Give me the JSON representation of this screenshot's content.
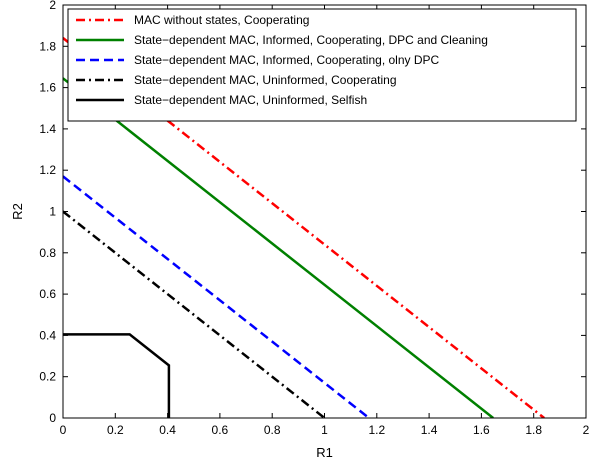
{
  "chart_data": {
    "type": "line",
    "xlabel": "R1",
    "ylabel": "R2",
    "xlim": [
      0,
      2
    ],
    "ylim": [
      0,
      2
    ],
    "xticks": [
      "0",
      "0.2",
      "0.4",
      "0.6",
      "0.8",
      "1",
      "1.2",
      "1.4",
      "1.6",
      "1.8",
      "2"
    ],
    "yticks": [
      "0",
      "0.2",
      "0.4",
      "0.6",
      "0.8",
      "1",
      "1.2",
      "1.4",
      "1.6",
      "1.8",
      "2"
    ],
    "grid": false,
    "legend_position": "top-right",
    "series": [
      {
        "name": "MAC without states, Cooperating",
        "color": "#ff0000",
        "dash": "dash-dot",
        "x": [
          0,
          1.84
        ],
        "y": [
          1.84,
          0
        ]
      },
      {
        "name": "State−dependent MAC, Informed, Cooperating, DPC and Cleaning",
        "color": "#008000",
        "dash": "solid",
        "x": [
          0,
          1.645
        ],
        "y": [
          1.645,
          0
        ]
      },
      {
        "name": "State−dependent MAC, Informed, Cooperating, olny DPC",
        "color": "#0000ff",
        "dash": "dash",
        "x": [
          0,
          1.17
        ],
        "y": [
          1.17,
          0
        ]
      },
      {
        "name": "State−dependent MAC, Uninformed, Cooperating",
        "color": "#000000",
        "dash": "dash-dot",
        "x": [
          0,
          1.0
        ],
        "y": [
          1.0,
          0
        ]
      },
      {
        "name": "State−dependent MAC, Uninformed, Selfish",
        "color": "#000000",
        "dash": "solid",
        "x": [
          0,
          0.255,
          0.405,
          0.405
        ],
        "y": [
          0.405,
          0.405,
          0.255,
          0
        ]
      }
    ]
  }
}
